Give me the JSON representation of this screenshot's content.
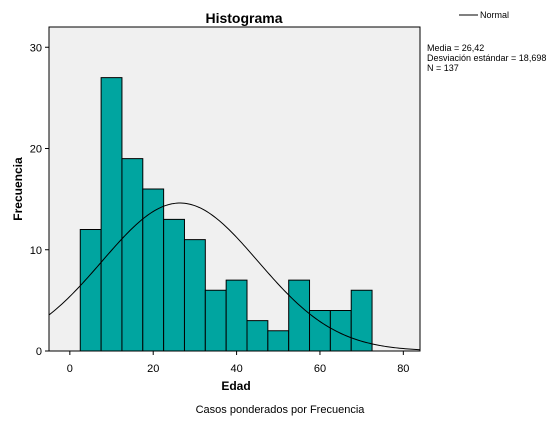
{
  "colors": {
    "bar_fill": "#00A5A0",
    "bar_stroke": "#000000",
    "plot_background": "#F0F0F0",
    "curve": "#000000"
  },
  "legend": {
    "label": "Normal"
  },
  "stats": {
    "mean": "Media = 26,42",
    "sd": "Desviación estándar = 18,698",
    "n": "N = 137"
  },
  "footnote": "Casos ponderados por Frecuencia",
  "chart_data": {
    "type": "bar",
    "title": "Histograma",
    "xlabel": "Edad",
    "ylabel": "Frecuencia",
    "xlim": [
      -5,
      84
    ],
    "ylim": [
      0,
      32
    ],
    "xticks": [
      0,
      20,
      40,
      60,
      80
    ],
    "yticks": [
      0,
      10,
      20,
      30
    ],
    "bins": [
      {
        "start": 2.5,
        "end": 7.5,
        "value": 12
      },
      {
        "start": 7.5,
        "end": 12.5,
        "value": 27
      },
      {
        "start": 12.5,
        "end": 17.5,
        "value": 19
      },
      {
        "start": 17.5,
        "end": 22.5,
        "value": 16
      },
      {
        "start": 22.5,
        "end": 27.5,
        "value": 13
      },
      {
        "start": 27.5,
        "end": 32.5,
        "value": 11
      },
      {
        "start": 32.5,
        "end": 37.5,
        "value": 6
      },
      {
        "start": 37.5,
        "end": 42.5,
        "value": 7
      },
      {
        "start": 42.5,
        "end": 47.5,
        "value": 3
      },
      {
        "start": 47.5,
        "end": 52.5,
        "value": 2
      },
      {
        "start": 52.5,
        "end": 57.5,
        "value": 7
      },
      {
        "start": 57.5,
        "end": 62.5,
        "value": 4
      },
      {
        "start": 62.5,
        "end": 67.5,
        "value": 4
      },
      {
        "start": 67.5,
        "end": 72.5,
        "value": 6
      }
    ],
    "normal_curve": {
      "mean": 26.42,
      "sd": 18.698,
      "n": 137,
      "bin_width": 5
    },
    "grid": false
  }
}
